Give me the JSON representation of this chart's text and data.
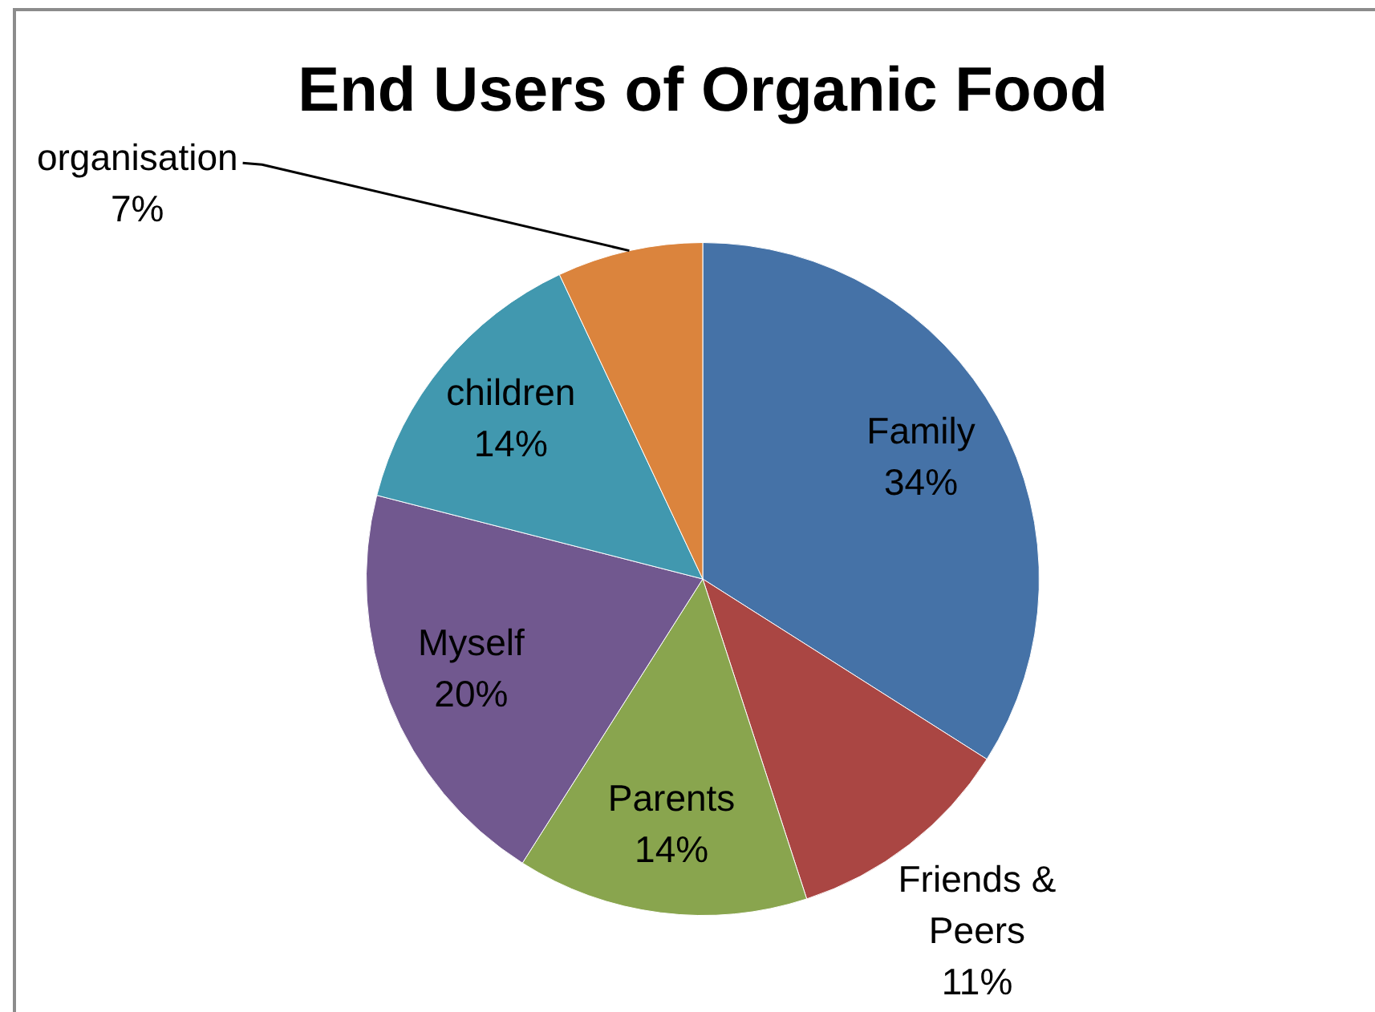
{
  "chart_data": {
    "type": "pie",
    "title": "End Users of Organic Food",
    "categories": [
      "Family",
      "Friends & Peers",
      "Parents",
      "Myself",
      "children",
      "organisation"
    ],
    "values": [
      34,
      11,
      14,
      20,
      14,
      7
    ],
    "value_labels": [
      "34%",
      "11%",
      "14%",
      "20%",
      "14%",
      "7%"
    ],
    "colors": [
      "#4572a7",
      "#aa4643",
      "#89a54e",
      "#71588f",
      "#4198af",
      "#db843d"
    ]
  }
}
